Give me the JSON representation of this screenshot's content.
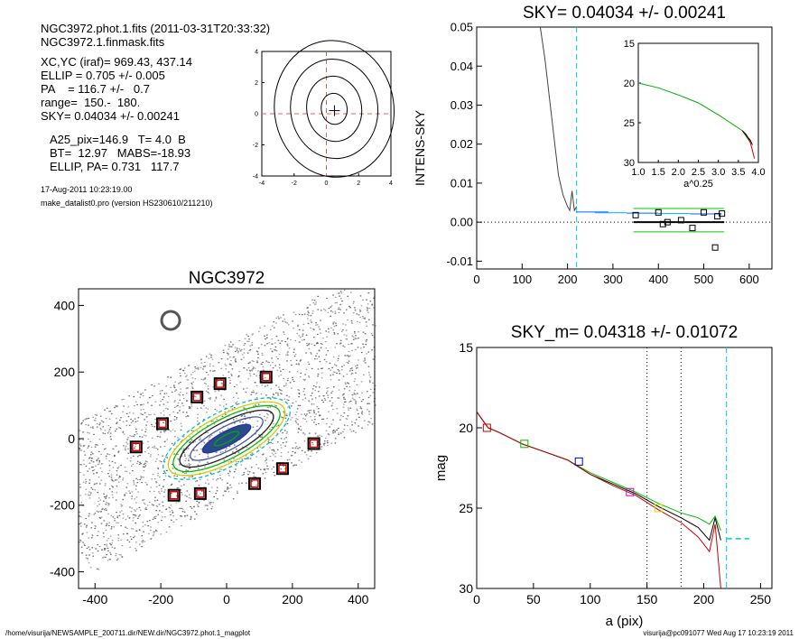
{
  "header": {
    "line1": "NGC3972.phot.1.fits  (2011-03-31T20:33:32)",
    "line2": "NGC3972.1.finmask.fits",
    "params": [
      "XC,YC (iraf)=   969.43, 437.14",
      "ELLIP = 0.705 +/- 0.005",
      "PA    = 116.7 +/-   0.7",
      "range=  150.-  180.",
      "SKY= 0.04034 +/- 0.00241"
    ],
    "params2": [
      "A25_pix=146.9   T= 4.0  B",
      "BT=  12.97   MABS=-18.93",
      "ELLIP, PA= 0.731   117.7"
    ],
    "date": "17-Aug-2011 10:23:19.00",
    "version": "make_datalist0.pro (version HS230610/211210)"
  },
  "footer": {
    "left": "/home/visurija/NEWSAMPLE_200711.dir/NEW.dir/NGC3972.phot.1_magplot",
    "right": "visurija@pc091077  Wed Aug 17 10:23:19 2011"
  },
  "chart_data": [
    {
      "id": "centroid",
      "type": "contour",
      "xticks": [
        "-4",
        "-2",
        "0",
        "2",
        "4"
      ],
      "yticks": [
        "-4",
        "-2",
        "0",
        "2",
        "4"
      ],
      "xlim": [
        -4,
        4
      ],
      "ylim": [
        -4,
        4
      ],
      "center": [
        0.5,
        0.2
      ]
    },
    {
      "id": "sky",
      "type": "line",
      "title": "SKY= 0.04034 +/- 0.00241",
      "ylabel": "INTENS-SKY",
      "xlim": [
        0,
        650
      ],
      "ylim": [
        -0.012,
        0.05
      ],
      "xticks": [
        "0",
        "100",
        "200",
        "300",
        "400",
        "500",
        "600"
      ],
      "yticks": [
        "-0.01",
        "0.00",
        "0.01",
        "0.02",
        "0.03",
        "0.04",
        "0.05"
      ],
      "profile": {
        "x": [
          140,
          150,
          160,
          170,
          180,
          190,
          200,
          205,
          210,
          215,
          220
        ],
        "y": [
          0.05,
          0.042,
          0.032,
          0.022,
          0.012,
          0.007,
          0.004,
          0.003,
          0.008,
          0.003,
          0.004
        ]
      },
      "sky_level": {
        "x": [
          345,
          545
        ],
        "y": 0.0
      },
      "squares": {
        "x": [
          350,
          400,
          410,
          420,
          450,
          475,
          500,
          525,
          530,
          540
        ],
        "y": [
          0.0018,
          0.0025,
          -0.0005,
          0.0,
          0.0005,
          -0.0015,
          0.0025,
          -0.0065,
          0.0015,
          0.0022
        ]
      },
      "vline": 220
    },
    {
      "id": "inset",
      "type": "line",
      "xlabel": "a^0.25",
      "xlim": [
        1.0,
        4.0
      ],
      "ylim": [
        30,
        15
      ],
      "xticks": [
        "1.0",
        "1.5",
        "2.0",
        "2.5",
        "3.0",
        "3.5",
        "4.0"
      ],
      "yticks": [
        "15",
        "20",
        "25",
        "30"
      ],
      "profile": {
        "x": [
          1.0,
          1.5,
          2.0,
          2.5,
          3.0,
          3.3,
          3.6,
          3.8
        ],
        "y": [
          20.0,
          20.6,
          21.5,
          22.5,
          24.0,
          25.0,
          26.0,
          27.5
        ]
      }
    },
    {
      "id": "image",
      "type": "image",
      "title": "NGC3972",
      "xlim": [
        -450,
        450
      ],
      "ylim": [
        -450,
        450
      ],
      "xticks": [
        "-400",
        "-200",
        "0",
        "200",
        "400"
      ],
      "yticks": [
        "-400",
        "-200",
        "0",
        "200",
        "400"
      ],
      "markers": {
        "x": [
          -275,
          -195,
          -90,
          -20,
          120,
          265,
          170,
          85,
          -80,
          -160
        ],
        "y": [
          -25,
          45,
          125,
          165,
          185,
          -15,
          -90,
          -135,
          -165,
          -170
        ]
      }
    },
    {
      "id": "mag",
      "type": "line",
      "title": "SKY_m=  0.04318 +/- 0.01072",
      "xlabel": "a (pix)",
      "ylabel": "mag",
      "xlim": [
        0,
        260
      ],
      "ylim": [
        30,
        15
      ],
      "xticks": [
        "0",
        "50",
        "100",
        "150",
        "200",
        "250"
      ],
      "yticks": [
        "15",
        "20",
        "25",
        "30"
      ],
      "series": [
        {
          "color": "#00bb00",
          "x": [
            0,
            10,
            20,
            40,
            60,
            80,
            100,
            120,
            140,
            160,
            180,
            195,
            205,
            210,
            215
          ],
          "y": [
            19.0,
            20.0,
            20.3,
            21.0,
            21.5,
            22.0,
            22.8,
            23.4,
            24.0,
            24.7,
            25.3,
            25.6,
            26.0,
            25.5,
            26.4
          ]
        },
        {
          "color": "#000000",
          "x": [
            0,
            10,
            20,
            40,
            60,
            80,
            100,
            120,
            140,
            160,
            180,
            195,
            205,
            210,
            215
          ],
          "y": [
            19.0,
            20.0,
            20.3,
            21.0,
            21.5,
            22.0,
            22.9,
            23.5,
            24.1,
            24.9,
            25.6,
            26.2,
            27.0,
            25.6,
            27.0
          ]
        },
        {
          "color": "#cc0000",
          "x": [
            0,
            10,
            20,
            40,
            60,
            80,
            100,
            120,
            140,
            160,
            180,
            195,
            205,
            210,
            215
          ],
          "y": [
            19.0,
            20.0,
            20.3,
            21.0,
            21.5,
            22.0,
            22.9,
            23.6,
            24.2,
            25.1,
            25.9,
            26.8,
            27.7,
            26.0,
            30.0
          ]
        }
      ],
      "squares": [
        {
          "x": 9,
          "y": 20.0,
          "color": "#cc0000"
        },
        {
          "x": 42,
          "y": 21.0,
          "color": "#00bb00"
        },
        {
          "x": 90,
          "y": 22.1,
          "color": "#0000cc"
        },
        {
          "x": 135,
          "y": 24.0,
          "color": "#cc00cc"
        },
        {
          "x": 160,
          "y": 25.0,
          "color": "#dddd00"
        }
      ],
      "vlines_dotted": [
        150,
        180
      ],
      "vline_dashed": 220,
      "sky_mag": {
        "x": [
          220,
          240
        ],
        "y": 26.9
      }
    }
  ]
}
